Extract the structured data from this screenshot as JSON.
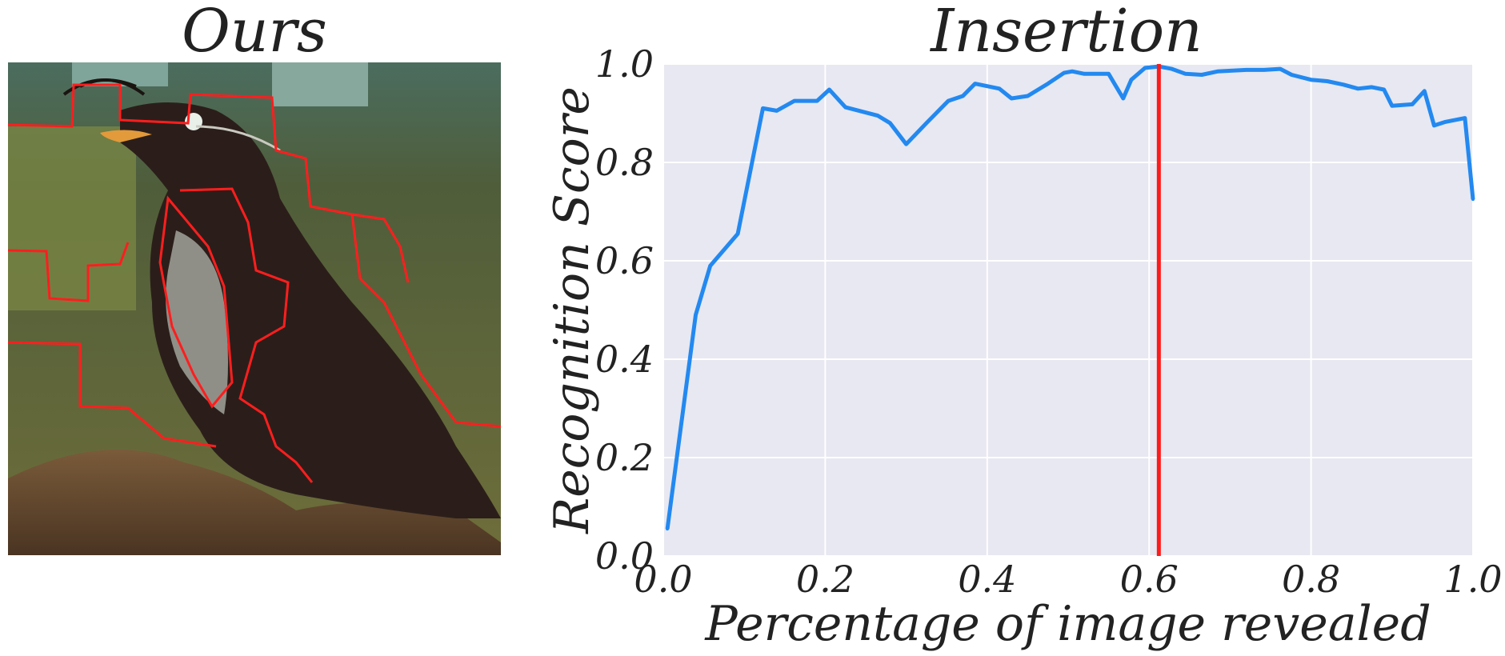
{
  "left_panel": {
    "title": "Ours",
    "image_description_icon": "bird-segmentation-photo"
  },
  "chart_data": {
    "type": "line",
    "title": "Insertion",
    "xlabel": "Percentage of image revealed",
    "ylabel": "Recognition Score",
    "xlim": [
      0.0,
      1.0
    ],
    "ylim": [
      0.0,
      1.0
    ],
    "xticks": [
      "0.0",
      "0.2",
      "0.4",
      "0.6",
      "0.8",
      "1.0"
    ],
    "yticks": [
      "0.0",
      "0.2",
      "0.4",
      "0.6",
      "0.8",
      "1.0"
    ],
    "grid": true,
    "series": [
      {
        "color": "#2389f0",
        "x": [
          0.005,
          0.04,
          0.058,
          0.092,
          0.123,
          0.14,
          0.162,
          0.19,
          0.205,
          0.225,
          0.265,
          0.28,
          0.3,
          0.325,
          0.352,
          0.37,
          0.385,
          0.415,
          0.43,
          0.45,
          0.475,
          0.495,
          0.505,
          0.52,
          0.55,
          0.568,
          0.578,
          0.595,
          0.612,
          0.628,
          0.645,
          0.665,
          0.685,
          0.72,
          0.742,
          0.762,
          0.776,
          0.8,
          0.82,
          0.84,
          0.858,
          0.875,
          0.89,
          0.9,
          0.925,
          0.94,
          0.952,
          0.965,
          0.99,
          1.0
        ],
        "y": [
          0.055,
          0.49,
          0.59,
          0.655,
          0.91,
          0.905,
          0.925,
          0.925,
          0.948,
          0.912,
          0.895,
          0.88,
          0.837,
          0.88,
          0.925,
          0.935,
          0.96,
          0.95,
          0.93,
          0.935,
          0.96,
          0.982,
          0.985,
          0.98,
          0.98,
          0.93,
          0.968,
          0.992,
          0.995,
          0.99,
          0.98,
          0.978,
          0.985,
          0.988,
          0.988,
          0.99,
          0.978,
          0.968,
          0.965,
          0.958,
          0.95,
          0.953,
          0.948,
          0.915,
          0.918,
          0.945,
          0.875,
          0.882,
          0.89,
          0.725
        ]
      }
    ],
    "vline": {
      "x": 0.612,
      "color": "#ff1a1a"
    }
  }
}
